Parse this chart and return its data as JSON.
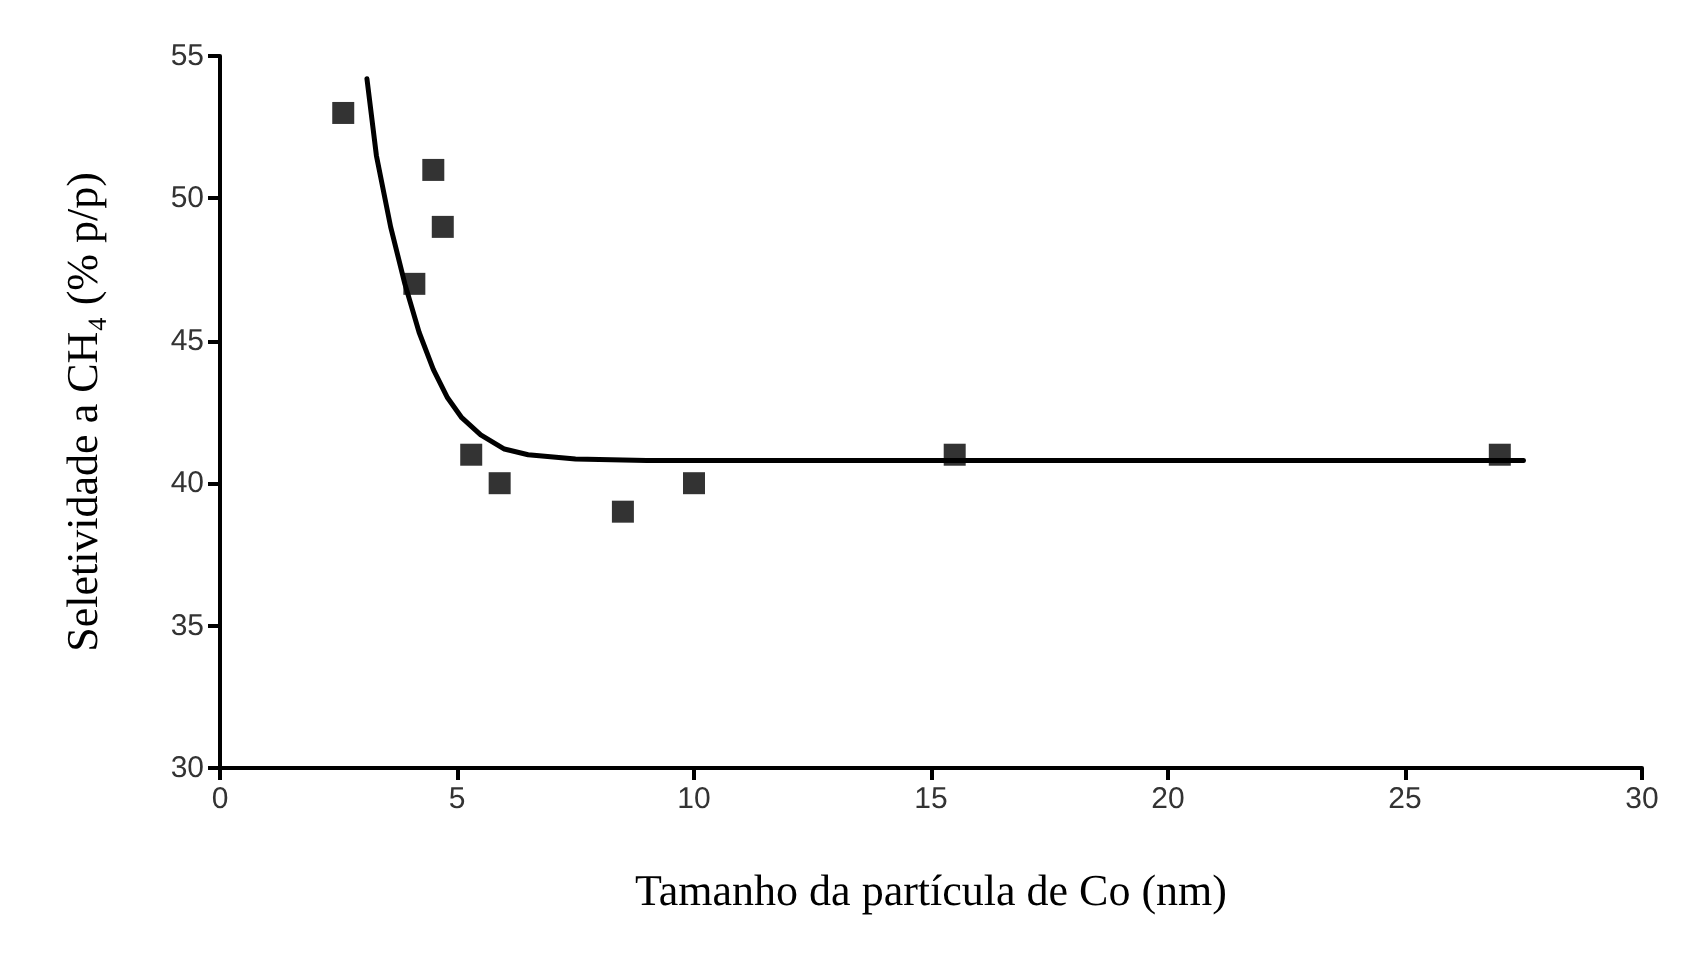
{
  "chart_data": {
    "type": "scatter",
    "xlabel": "Tamanho da partícula de Co (nm)",
    "ylabel": "Seletividade a CH₄ (% p/p)",
    "xlim": [
      0,
      30
    ],
    "xticks": [
      0,
      5,
      10,
      15,
      20,
      25,
      30
    ],
    "ylim": [
      30,
      55
    ],
    "yticks": [
      30,
      35,
      40,
      45,
      50,
      55
    ],
    "grid": false,
    "series": [
      {
        "color": "#000000",
        "marker": "square",
        "x": [
          2.6,
          4.1,
          4.5,
          4.7,
          5.3,
          5.9,
          8.5,
          10.0,
          15.5,
          27.0
        ],
        "values": [
          53,
          47,
          51,
          49,
          41,
          40,
          39,
          40,
          41,
          41
        ]
      },
      {
        "type": "line",
        "color": "#000000",
        "marker": "none",
        "line_style": "solid",
        "x": [
          3.1,
          3.3,
          3.6,
          3.9,
          4.2,
          4.5,
          4.8,
          5.1,
          5.5,
          6.0,
          6.5,
          7.5,
          9.0,
          12.0,
          20.0,
          27.5
        ],
        "values": [
          54.2,
          51.5,
          49.0,
          47.0,
          45.3,
          44.0,
          43.0,
          42.3,
          41.7,
          41.2,
          41.0,
          40.85,
          40.8,
          40.8,
          40.8,
          40.8
        ]
      }
    ]
  }
}
